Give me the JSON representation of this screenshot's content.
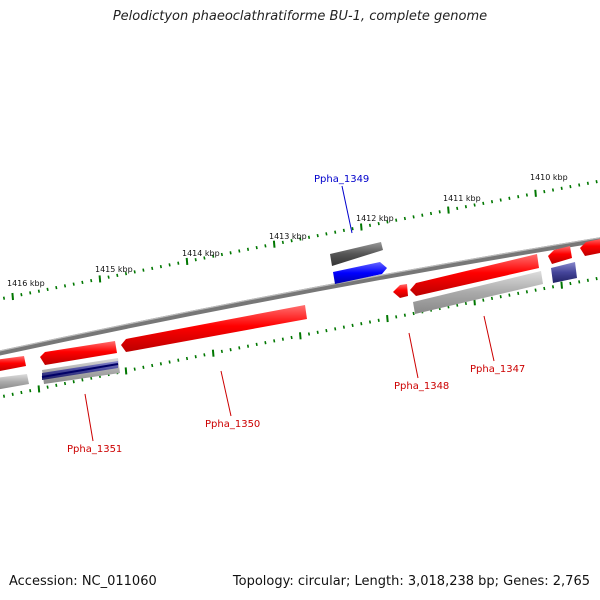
{
  "title": "Pelodictyon phaeoclathratiforme BU-1, complete genome",
  "footer": {
    "accession": "Accession: NC_011060",
    "summary": "Topology: circular; Length: 3,018,238 bp; Genes: 2,765"
  },
  "scale_labels": [
    "1416 kbp",
    "1415 kbp",
    "1414 kbp",
    "1413 kbp",
    "1412 kbp",
    "1411 kbp",
    "1410 kbp"
  ],
  "gene_labels": [
    {
      "name": "Ppha_1349",
      "color": "#0000cc"
    },
    {
      "name": "Ppha_1351",
      "color": "#cc0000"
    },
    {
      "name": "Ppha_1350",
      "color": "#cc0000"
    },
    {
      "name": "Ppha_1348",
      "color": "#cc0000"
    },
    {
      "name": "Ppha_1347",
      "color": "#cc0000"
    }
  ],
  "colors": {
    "cds": "#ff0000",
    "gene": "#999999",
    "rna_gene": "#555555",
    "rna": "#0000ff",
    "ticks": "#007700",
    "backbone": "#777777"
  }
}
